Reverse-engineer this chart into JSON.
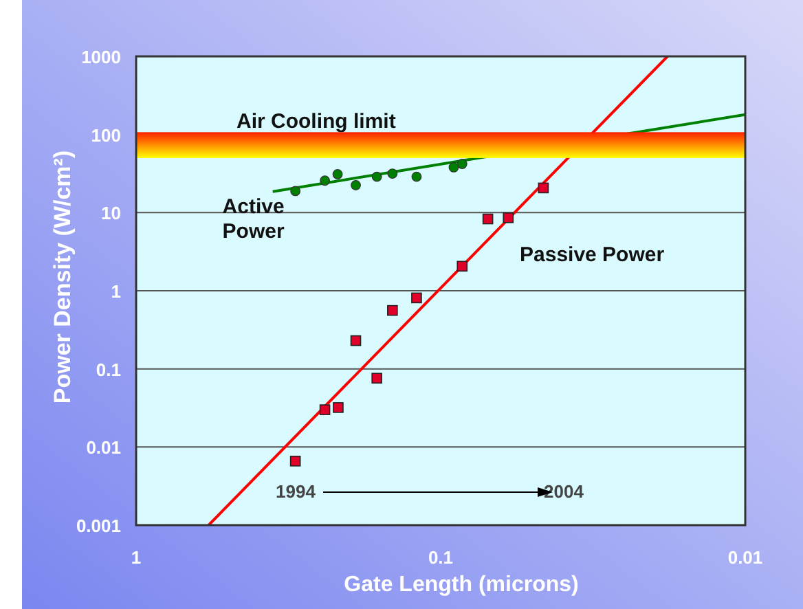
{
  "chart_data": {
    "type": "scatter",
    "xlabel": "Gate Length (microns)",
    "ylabel": "Power Density (W/cm²)",
    "log": "xy",
    "xlim": [
      1,
      0.01
    ],
    "xticks": [
      1,
      0.1,
      0.01
    ],
    "ylim": [
      0.001,
      1000
    ],
    "yticks": [
      0.001,
      0.01,
      0.1,
      1,
      10,
      100,
      1000
    ],
    "grid": "y",
    "series": [
      {
        "name": "Active Power",
        "marker": "circle",
        "color": "#008000",
        "x": [
          0.3,
          0.24,
          0.218,
          0.19,
          0.162,
          0.144,
          0.12,
          0.0906,
          0.085
        ],
        "values": [
          18.9,
          25.7,
          31,
          22.4,
          28.8,
          31.6,
          28.8,
          38,
          42
        ]
      },
      {
        "type": "line",
        "color": "#008000",
        "x": [
          0.356,
          0.01
        ],
        "values": [
          18.6,
          180
        ]
      },
      {
        "name": "Passive Power",
        "marker": "square",
        "color": "#e0002a",
        "x": [
          0.3,
          0.24,
          0.217,
          0.19,
          0.162,
          0.144,
          0.12,
          0.085,
          0.07,
          0.06,
          0.046
        ],
        "values": [
          0.0066,
          0.03,
          0.032,
          0.23,
          0.076,
          0.56,
          0.81,
          2.06,
          8.3,
          8.6,
          20.7
        ]
      },
      {
        "type": "line",
        "color": "#ff0000",
        "x": [
          0.578,
          0.018
        ],
        "values": [
          0.001,
          1000
        ]
      }
    ],
    "bands": [
      {
        "axis": "y",
        "from": 50,
        "to": 107,
        "label": "Air Cooling limit",
        "color": "#ff2000"
      }
    ],
    "annotations": [
      "1994",
      "2004"
    ]
  }
}
